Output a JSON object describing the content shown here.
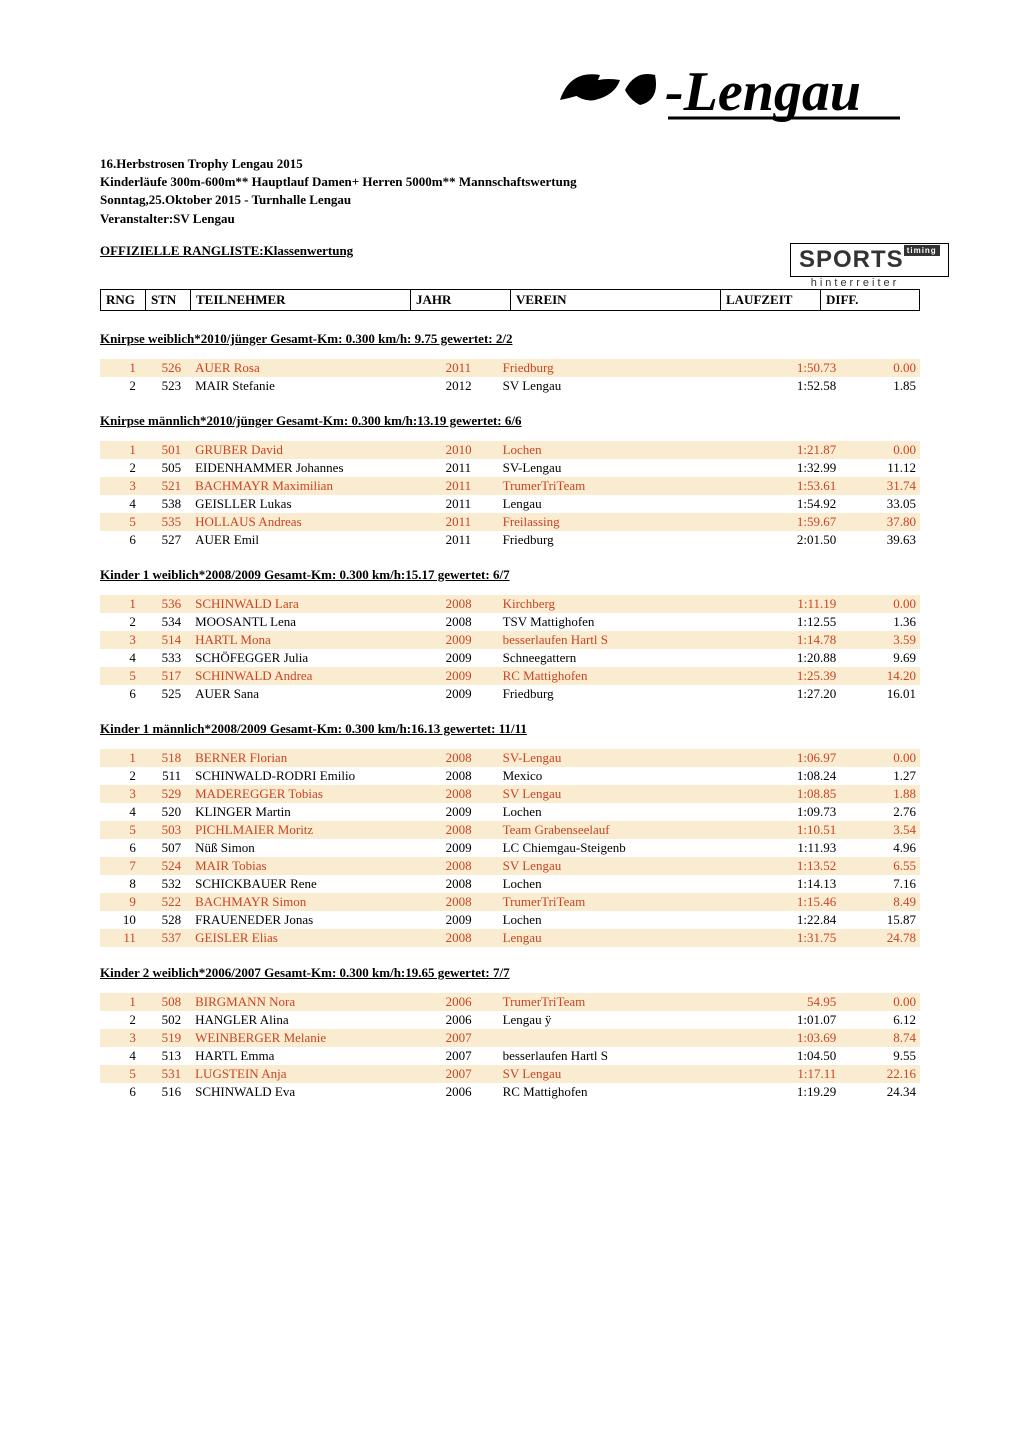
{
  "event": {
    "title_line1": "16.Herbstrosen Trophy Lengau 2015",
    "title_line2": "Kinderläufe 300m-600m** Hauptlauf Damen+ Herren 5000m** Mannschaftswertung",
    "title_line3": "Sonntag,25.Oktober 2015 - Turnhalle Lengau",
    "title_line4": "Veranstalter:SV Lengau",
    "offizielle": "OFFIZIELLE RANGLISTE:Klassenwertung"
  },
  "logo": {
    "main_text": "-Lengau",
    "sports_text": "SPORTS",
    "timing_badge": "timing",
    "sports_subtitle": "hinterreiter"
  },
  "columns": {
    "rng": "RNG",
    "stn": "STN",
    "teilnehmer": "TEILNEHMER",
    "jahr": "JAHR",
    "verein": "VEREIN",
    "laufzeit": "LAUFZEIT",
    "diff": "DIFF."
  },
  "colors": {
    "odd_row_bg": "#f9ecd1",
    "odd_row_text": "#cb4422",
    "even_row_bg": "#ffffff",
    "even_row_text": "#000000"
  },
  "categories": [
    {
      "header": "Knirpse weiblich*2010/jünger  Gesamt-Km:  0.300  km/h: 9.75  gewertet: 2/2",
      "rows": [
        {
          "rng": "1",
          "stn": "526",
          "name": "AUER Rosa",
          "jahr": "2011",
          "verein": "Friedburg",
          "zeit": "1:50.73",
          "diff": "0.00"
        },
        {
          "rng": "2",
          "stn": "523",
          "name": "MAIR Stefanie",
          "jahr": "2012",
          "verein": "SV Lengau",
          "zeit": "1:52.58",
          "diff": "1.85"
        }
      ]
    },
    {
      "header": "Knirpse männlich*2010/jünger  Gesamt-Km:  0.300  km/h:13.19  gewertet: 6/6",
      "rows": [
        {
          "rng": "1",
          "stn": "501",
          "name": "GRUBER David",
          "jahr": "2010",
          "verein": "Lochen",
          "zeit": "1:21.87",
          "diff": "0.00"
        },
        {
          "rng": "2",
          "stn": "505",
          "name": "EIDENHAMMER Johannes",
          "jahr": "2011",
          "verein": "SV-Lengau",
          "zeit": "1:32.99",
          "diff": "11.12"
        },
        {
          "rng": "3",
          "stn": "521",
          "name": "BACHMAYR Maximilian",
          "jahr": "2011",
          "verein": "TrumerTriTeam",
          "zeit": "1:53.61",
          "diff": "31.74"
        },
        {
          "rng": "4",
          "stn": "538",
          "name": "GEISLLER Lukas",
          "jahr": "2011",
          "verein": "Lengau",
          "zeit": "1:54.92",
          "diff": "33.05"
        },
        {
          "rng": "5",
          "stn": "535",
          "name": "HOLLAUS Andreas",
          "jahr": "2011",
          "verein": "Freilassing",
          "zeit": "1:59.67",
          "diff": "37.80"
        },
        {
          "rng": "6",
          "stn": "527",
          "name": "AUER Emil",
          "jahr": "2011",
          "verein": "Friedburg",
          "zeit": "2:01.50",
          "diff": "39.63"
        }
      ]
    },
    {
      "header": "Kinder 1 weiblich*2008/2009  Gesamt-Km:  0.300  km/h:15.17  gewertet: 6/7",
      "rows": [
        {
          "rng": "1",
          "stn": "536",
          "name": "SCHINWALD Lara",
          "jahr": "2008",
          "verein": "Kirchberg",
          "zeit": "1:11.19",
          "diff": "0.00"
        },
        {
          "rng": "2",
          "stn": "534",
          "name": "MOOSANTL Lena",
          "jahr": "2008",
          "verein": "TSV Mattighofen",
          "zeit": "1:12.55",
          "diff": "1.36"
        },
        {
          "rng": "3",
          "stn": "514",
          "name": "HARTL Mona",
          "jahr": "2009",
          "verein": "besserlaufen Hartl S",
          "zeit": "1:14.78",
          "diff": "3.59"
        },
        {
          "rng": "4",
          "stn": "533",
          "name": "SCHÖFEGGER Julia",
          "jahr": "2009",
          "verein": "Schneegattern",
          "zeit": "1:20.88",
          "diff": "9.69"
        },
        {
          "rng": "5",
          "stn": "517",
          "name": "SCHINWALD Andrea",
          "jahr": "2009",
          "verein": "RC Mattighofen",
          "zeit": "1:25.39",
          "diff": "14.20"
        },
        {
          "rng": "6",
          "stn": "525",
          "name": "AUER Sana",
          "jahr": "2009",
          "verein": "Friedburg",
          "zeit": "1:27.20",
          "diff": "16.01"
        }
      ]
    },
    {
      "header": "Kinder 1 männlich*2008/2009  Gesamt-Km:  0.300  km/h:16.13  gewertet: 11/11",
      "rows": [
        {
          "rng": "1",
          "stn": "518",
          "name": "BERNER Florian",
          "jahr": "2008",
          "verein": "SV-Lengau",
          "zeit": "1:06.97",
          "diff": "0.00"
        },
        {
          "rng": "2",
          "stn": "511",
          "name": "SCHINWALD-RODRI Emilio",
          "jahr": "2008",
          "verein": "Mexico",
          "zeit": "1:08.24",
          "diff": "1.27"
        },
        {
          "rng": "3",
          "stn": "529",
          "name": "MADEREGGER Tobias",
          "jahr": "2008",
          "verein": "SV Lengau",
          "zeit": "1:08.85",
          "diff": "1.88"
        },
        {
          "rng": "4",
          "stn": "520",
          "name": "KLINGER Martin",
          "jahr": "2009",
          "verein": "Lochen",
          "zeit": "1:09.73",
          "diff": "2.76"
        },
        {
          "rng": "5",
          "stn": "503",
          "name": "PICHLMAIER Moritz",
          "jahr": "2008",
          "verein": "Team Grabenseelauf",
          "zeit": "1:10.51",
          "diff": "3.54"
        },
        {
          "rng": "6",
          "stn": "507",
          "name": "Nüß Simon",
          "jahr": "2009",
          "verein": "LC Chiemgau-Steigenb",
          "zeit": "1:11.93",
          "diff": "4.96"
        },
        {
          "rng": "7",
          "stn": "524",
          "name": "MAIR Tobias",
          "jahr": "2008",
          "verein": "SV Lengau",
          "zeit": "1:13.52",
          "diff": "6.55"
        },
        {
          "rng": "8",
          "stn": "532",
          "name": "SCHICKBAUER Rene",
          "jahr": "2008",
          "verein": "Lochen",
          "zeit": "1:14.13",
          "diff": "7.16"
        },
        {
          "rng": "9",
          "stn": "522",
          "name": "BACHMAYR Simon",
          "jahr": "2008",
          "verein": "TrumerTriTeam",
          "zeit": "1:15.46",
          "diff": "8.49"
        },
        {
          "rng": "10",
          "stn": "528",
          "name": "FRAUENEDER Jonas",
          "jahr": "2009",
          "verein": "Lochen",
          "zeit": "1:22.84",
          "diff": "15.87"
        },
        {
          "rng": "11",
          "stn": "537",
          "name": "GEISLER Elias",
          "jahr": "2008",
          "verein": "Lengau",
          "zeit": "1:31.75",
          "diff": "24.78"
        }
      ]
    },
    {
      "header": "Kinder 2 weiblich*2006/2007  Gesamt-Km:  0.300  km/h:19.65  gewertet: 7/7",
      "rows": [
        {
          "rng": "1",
          "stn": "508",
          "name": "BIRGMANN Nora",
          "jahr": "2006",
          "verein": "TrumerTriTeam",
          "zeit": "54.95",
          "diff": "0.00"
        },
        {
          "rng": "2",
          "stn": "502",
          "name": "HANGLER Alina",
          "jahr": "2006",
          "verein": "Lengau ÿ",
          "zeit": "1:01.07",
          "diff": "6.12"
        },
        {
          "rng": "3",
          "stn": "519",
          "name": "WEINBERGER Melanie",
          "jahr": "2007",
          "verein": "",
          "zeit": "1:03.69",
          "diff": "8.74"
        },
        {
          "rng": "4",
          "stn": "513",
          "name": "HARTL Emma",
          "jahr": "2007",
          "verein": "besserlaufen Hartl S",
          "zeit": "1:04.50",
          "diff": "9.55"
        },
        {
          "rng": "5",
          "stn": "531",
          "name": "LUGSTEIN Anja",
          "jahr": "2007",
          "verein": "SV Lengau",
          "zeit": "1:17.11",
          "diff": "22.16"
        },
        {
          "rng": "6",
          "stn": "516",
          "name": "SCHINWALD Eva",
          "jahr": "2006",
          "verein": "RC Mattighofen",
          "zeit": "1:19.29",
          "diff": "24.34"
        }
      ]
    }
  ]
}
